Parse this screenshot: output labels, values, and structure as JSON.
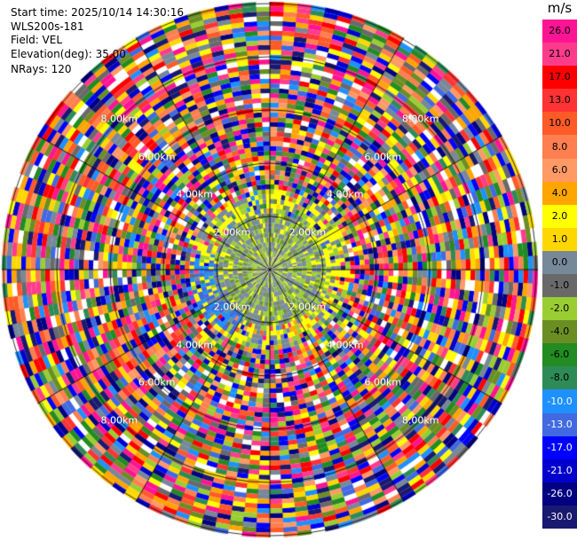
{
  "info": {
    "start_time": "Start time: 2025/10/14 14:30:16",
    "station": "WLS200s-181",
    "field": "Field: VEL",
    "elevation": "Elevation(deg): 35.00",
    "nrays": "NRays: 120"
  },
  "colorbar": {
    "unit": "m/s",
    "ticks": [
      "26.0",
      "21.0",
      "17.0",
      "13.0",
      "10.0",
      "8.0",
      "6.0",
      "4.0",
      "2.0",
      "1.0",
      "0.0",
      "-1.0",
      "-2.0",
      "-4.0",
      "-6.0",
      "-8.0",
      "-10.0",
      "-13.0",
      "-17.0",
      "-21.0",
      "-26.0",
      "-30.0"
    ],
    "colors": [
      "#ff1493",
      "#ff3c8c",
      "#ff0000",
      "#ff3333",
      "#ff5a28",
      "#ff7f50",
      "#ff9a66",
      "#ffa500",
      "#ffff00",
      "#ffd700",
      "#778899",
      "#696969",
      "#9acd32",
      "#6b8e23",
      "#228b22",
      "#2e8b57",
      "#1e90ff",
      "#4169e1",
      "#0000ff",
      "#0000cd",
      "#000080",
      "#191970"
    ]
  },
  "range_labels": [
    "2.00km",
    "4.00km",
    "6.00km",
    "8.00km"
  ]
}
